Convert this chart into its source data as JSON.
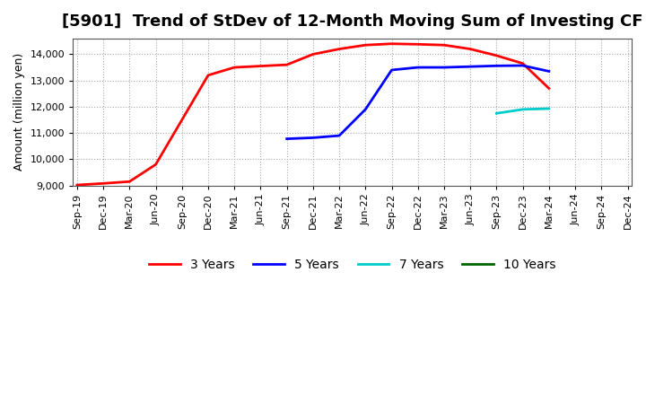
{
  "title": "[5901]  Trend of StDev of 12-Month Moving Sum of Investing CF",
  "ylabel": "Amount (million yen)",
  "ylim": [
    9000,
    14600
  ],
  "yticks": [
    9000,
    10000,
    11000,
    12000,
    13000,
    14000
  ],
  "background_color": "#ffffff",
  "grid_color": "#aaaaaa",
  "series": {
    "3years": {
      "color": "#ff0000",
      "label": "3 Years",
      "x": [
        "Sep-19",
        "Dec-19",
        "Mar-20",
        "Jun-20",
        "Sep-20",
        "Dec-20",
        "Mar-21",
        "Jun-21",
        "Sep-21",
        "Dec-21",
        "Mar-22",
        "Jun-22",
        "Sep-22",
        "Dec-22",
        "Mar-23",
        "Jun-23",
        "Sep-23",
        "Dec-23",
        "Mar-24"
      ],
      "y": [
        9020,
        9080,
        9150,
        9800,
        11500,
        13200,
        13500,
        13550,
        13600,
        14000,
        14200,
        14350,
        14400,
        14380,
        14350,
        14200,
        13950,
        13650,
        12700
      ]
    },
    "5years": {
      "color": "#0000ff",
      "label": "5 Years",
      "x": [
        "Sep-21",
        "Dec-21",
        "Mar-22",
        "Jun-22",
        "Sep-22",
        "Dec-22",
        "Mar-23",
        "Jun-23",
        "Sep-23",
        "Dec-23",
        "Mar-24"
      ],
      "y": [
        10780,
        10820,
        10900,
        11900,
        13400,
        13500,
        13500,
        13530,
        13560,
        13570,
        13350
      ]
    },
    "7years": {
      "color": "#00cccc",
      "label": "7 Years",
      "x": [
        "Sep-23",
        "Dec-23",
        "Mar-24"
      ],
      "y": [
        11750,
        11900,
        11930
      ]
    },
    "10years": {
      "color": "#006600",
      "label": "10 Years",
      "x": [],
      "y": []
    }
  },
  "xtick_labels": [
    "Sep-19",
    "Dec-19",
    "Mar-20",
    "Jun-20",
    "Sep-20",
    "Dec-20",
    "Mar-21",
    "Jun-21",
    "Sep-21",
    "Dec-21",
    "Mar-22",
    "Jun-22",
    "Sep-22",
    "Dec-22",
    "Mar-23",
    "Jun-23",
    "Sep-23",
    "Dec-23",
    "Mar-24",
    "Jun-24",
    "Sep-24",
    "Dec-24"
  ],
  "title_fontsize": 13,
  "tick_fontsize": 8,
  "legend_fontsize": 10
}
